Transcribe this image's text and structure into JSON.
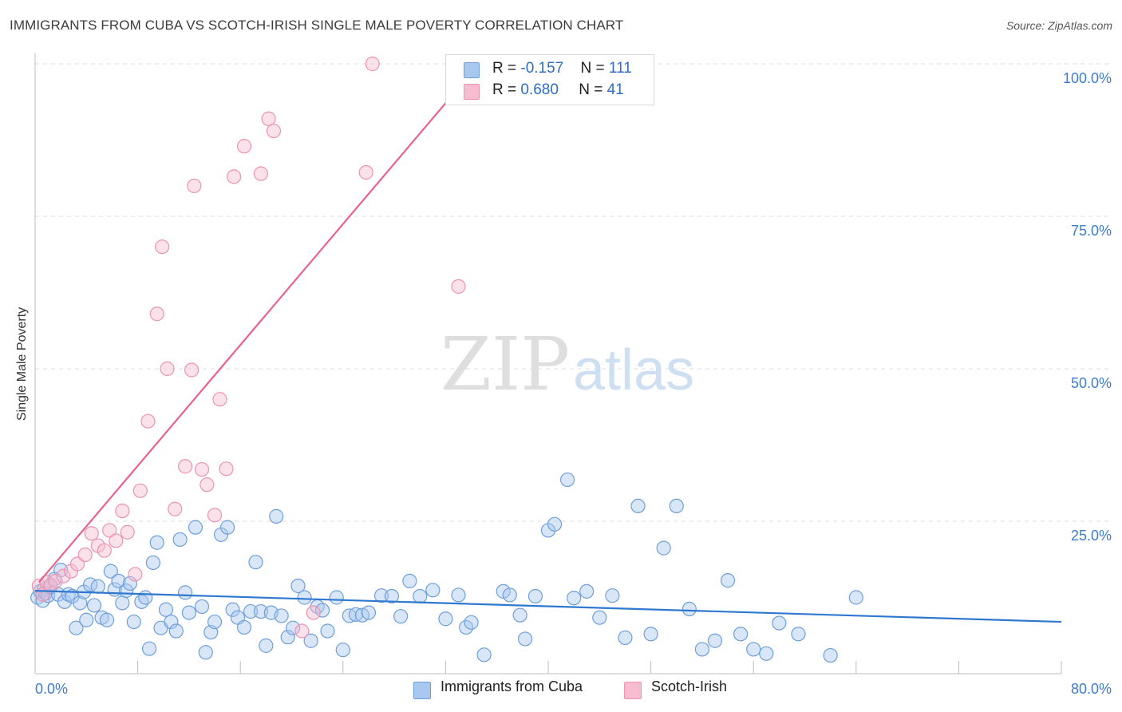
{
  "header": {
    "title": "IMMIGRANTS FROM CUBA VS SCOTCH-IRISH SINGLE MALE POVERTY CORRELATION CHART",
    "source": "Source: ZipAtlas.com"
  },
  "watermark": {
    "zip": "ZIP",
    "atlas": "atlas"
  },
  "legend_top": {
    "rows": [
      {
        "r_label": "R = ",
        "r_value": "-0.157",
        "n_label": "N = ",
        "n_value": "111"
      },
      {
        "r_label": "R = ",
        "r_value": "0.680",
        "n_label": "N = ",
        "n_value": "41"
      }
    ]
  },
  "colors": {
    "blue_fill": "#a9c8f0",
    "blue_stroke": "#6e9fdb",
    "blue_line": "#2f78d0",
    "pink_fill": "#f7bcd0",
    "pink_stroke": "#ec93b1",
    "pink_line": "#e8628f",
    "tick_text": "#3e7bd0",
    "grid": "#dcdcdc"
  },
  "chart_data": {
    "type": "scatter",
    "title": "IMMIGRANTS FROM CUBA VS SCOTCH-IRISH SINGLE MALE POVERTY CORRELATION CHART",
    "xlabel": "",
    "ylabel": "Single Male Poverty",
    "xlim": [
      0,
      80
    ],
    "ylim": [
      0,
      100
    ],
    "x_tick_labels": [
      "0.0%",
      "80.0%"
    ],
    "y_ticks": [
      25,
      50,
      75,
      100
    ],
    "y_tick_labels": [
      "25.0%",
      "50.0%",
      "75.0%",
      "100.0%"
    ],
    "grid": "horizontal dashed",
    "legend_position": "bottom-center",
    "series": [
      {
        "name": "Immigrants from Cuba",
        "color": "#a9c8f0",
        "trend": {
          "x": [
            0,
            80
          ],
          "y": [
            13.6,
            8.5
          ]
        },
        "points": [
          [
            0.2,
            12.5
          ],
          [
            0.4,
            13.5
          ],
          [
            0.6,
            12.0
          ],
          [
            0.7,
            13.8
          ],
          [
            0.8,
            13.2
          ],
          [
            1.0,
            12.8
          ],
          [
            1.2,
            14.2
          ],
          [
            1.5,
            15.5
          ],
          [
            1.8,
            13.0
          ],
          [
            2.0,
            17.0
          ],
          [
            2.3,
            11.8
          ],
          [
            2.6,
            13.0
          ],
          [
            2.9,
            12.7
          ],
          [
            3.2,
            7.5
          ],
          [
            3.5,
            11.6
          ],
          [
            3.8,
            13.4
          ],
          [
            4.0,
            8.8
          ],
          [
            4.3,
            14.6
          ],
          [
            4.6,
            11.2
          ],
          [
            4.9,
            14.3
          ],
          [
            5.2,
            9.2
          ],
          [
            5.6,
            8.8
          ],
          [
            5.9,
            16.8
          ],
          [
            6.2,
            13.8
          ],
          [
            6.5,
            15.2
          ],
          [
            6.8,
            11.6
          ],
          [
            7.1,
            13.6
          ],
          [
            7.4,
            14.8
          ],
          [
            7.7,
            8.5
          ],
          [
            8.3,
            11.8
          ],
          [
            8.6,
            12.5
          ],
          [
            8.9,
            4.1
          ],
          [
            9.2,
            18.2
          ],
          [
            9.5,
            21.5
          ],
          [
            9.8,
            7.5
          ],
          [
            10.2,
            10.5
          ],
          [
            10.6,
            8.5
          ],
          [
            11.0,
            7.0
          ],
          [
            11.3,
            22.0
          ],
          [
            11.7,
            13.3
          ],
          [
            12.0,
            10.0
          ],
          [
            12.5,
            24.0
          ],
          [
            13.0,
            11.0
          ],
          [
            13.3,
            3.5
          ],
          [
            13.7,
            6.8
          ],
          [
            14.0,
            8.5
          ],
          [
            14.5,
            22.8
          ],
          [
            15.0,
            24.0
          ],
          [
            15.4,
            10.5
          ],
          [
            15.8,
            9.2
          ],
          [
            16.3,
            7.6
          ],
          [
            16.8,
            10.2
          ],
          [
            17.2,
            18.3
          ],
          [
            17.6,
            10.2
          ],
          [
            18.0,
            4.6
          ],
          [
            18.4,
            10.0
          ],
          [
            18.8,
            25.8
          ],
          [
            19.2,
            9.5
          ],
          [
            19.7,
            6.0
          ],
          [
            20.1,
            7.5
          ],
          [
            20.5,
            14.4
          ],
          [
            21.0,
            12.5
          ],
          [
            21.5,
            5.4
          ],
          [
            22.0,
            11.0
          ],
          [
            22.4,
            10.4
          ],
          [
            22.8,
            7.0
          ],
          [
            23.5,
            12.5
          ],
          [
            24.0,
            3.9
          ],
          [
            24.5,
            9.5
          ],
          [
            25.0,
            9.7
          ],
          [
            25.5,
            9.6
          ],
          [
            26.0,
            10.0
          ],
          [
            27.0,
            12.8
          ],
          [
            27.8,
            12.7
          ],
          [
            28.5,
            9.4
          ],
          [
            29.2,
            15.2
          ],
          [
            30.0,
            12.7
          ],
          [
            31.0,
            13.7
          ],
          [
            32.0,
            9.0
          ],
          [
            33.0,
            12.9
          ],
          [
            33.6,
            7.6
          ],
          [
            34.0,
            8.4
          ],
          [
            35.0,
            3.1
          ],
          [
            36.5,
            13.5
          ],
          [
            37.0,
            12.9
          ],
          [
            37.8,
            9.6
          ],
          [
            38.2,
            5.7
          ],
          [
            39.0,
            12.7
          ],
          [
            40.0,
            23.5
          ],
          [
            40.5,
            24.5
          ],
          [
            41.5,
            31.8
          ],
          [
            42.0,
            12.4
          ],
          [
            43.0,
            13.5
          ],
          [
            44.0,
            9.2
          ],
          [
            45.0,
            12.8
          ],
          [
            46.0,
            5.9
          ],
          [
            47.0,
            27.5
          ],
          [
            48.0,
            6.5
          ],
          [
            49.0,
            20.6
          ],
          [
            50.0,
            27.5
          ],
          [
            51.0,
            10.6
          ],
          [
            52.0,
            4.0
          ],
          [
            53.0,
            5.4
          ],
          [
            54.0,
            15.3
          ],
          [
            55.0,
            6.5
          ],
          [
            56.0,
            4.0
          ],
          [
            57.0,
            3.3
          ],
          [
            58.0,
            8.3
          ],
          [
            59.5,
            6.5
          ],
          [
            62.0,
            3.0
          ],
          [
            64.0,
            12.5
          ]
        ]
      },
      {
        "name": "Scotch-Irish",
        "color": "#f7bcd0",
        "trend": {
          "x": [
            0.3,
            34.6
          ],
          "y": [
            15.0,
            100.0
          ]
        },
        "points": [
          [
            0.3,
            14.4
          ],
          [
            0.6,
            13.0
          ],
          [
            0.9,
            15.0
          ],
          [
            1.2,
            14.5
          ],
          [
            1.6,
            15.2
          ],
          [
            2.2,
            16.0
          ],
          [
            2.8,
            16.8
          ],
          [
            3.3,
            18.0
          ],
          [
            3.9,
            19.5
          ],
          [
            4.4,
            23.0
          ],
          [
            4.9,
            21.0
          ],
          [
            5.4,
            20.2
          ],
          [
            5.8,
            23.5
          ],
          [
            6.3,
            21.8
          ],
          [
            6.8,
            26.7
          ],
          [
            7.2,
            23.2
          ],
          [
            7.8,
            16.3
          ],
          [
            8.2,
            30.0
          ],
          [
            8.8,
            41.4
          ],
          [
            9.5,
            59.0
          ],
          [
            9.9,
            70.0
          ],
          [
            10.3,
            50.0
          ],
          [
            10.9,
            27.0
          ],
          [
            11.7,
            34.0
          ],
          [
            12.2,
            49.8
          ],
          [
            12.4,
            80.0
          ],
          [
            13.0,
            33.5
          ],
          [
            13.4,
            31.0
          ],
          [
            14.0,
            26.0
          ],
          [
            14.4,
            45.0
          ],
          [
            14.9,
            33.6
          ],
          [
            15.5,
            81.5
          ],
          [
            16.3,
            86.5
          ],
          [
            17.6,
            82.0
          ],
          [
            18.2,
            91.0
          ],
          [
            18.6,
            89.0
          ],
          [
            20.8,
            7.0
          ],
          [
            21.7,
            10.0
          ],
          [
            25.8,
            82.2
          ],
          [
            26.3,
            100.0
          ],
          [
            33.0,
            63.5
          ]
        ]
      }
    ]
  },
  "legend_bottom": {
    "items": [
      {
        "label": "Immigrants from Cuba"
      },
      {
        "label": "Scotch-Irish"
      }
    ]
  }
}
